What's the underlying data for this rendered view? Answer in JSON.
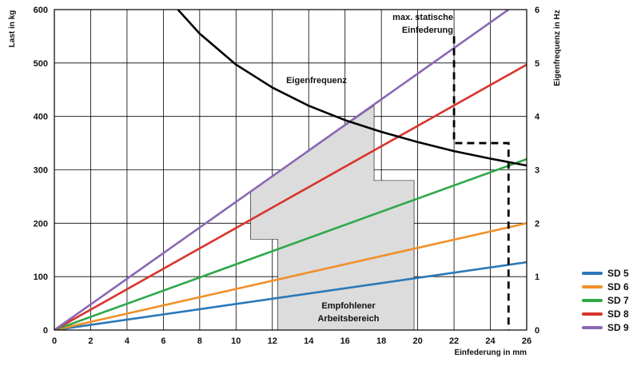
{
  "chart_data": {
    "type": "line",
    "xlabel": "Einfederung in mm",
    "ylabel_left": "Last in kg",
    "ylabel_right": "Eigenfrequenz in Hz",
    "xlim": [
      0,
      26
    ],
    "ylim_left": [
      0,
      600
    ],
    "ylim_right": [
      0,
      6
    ],
    "x_ticks": [
      0,
      2,
      4,
      6,
      8,
      10,
      12,
      14,
      16,
      18,
      20,
      22,
      24,
      26
    ],
    "y_ticks_left": [
      0,
      100,
      200,
      300,
      400,
      500,
      600
    ],
    "y_ticks_right": [
      0,
      1,
      2,
      3,
      4,
      5,
      6
    ],
    "grid": true,
    "series": [
      {
        "name": "SD 5",
        "color": "#2a78b8",
        "x": [
          0,
          26
        ],
        "y": [
          0,
          127
        ]
      },
      {
        "name": "SD 6",
        "color": "#f0902a",
        "x": [
          0,
          26
        ],
        "y": [
          0,
          200
        ]
      },
      {
        "name": "SD 7",
        "color": "#2fa84a",
        "x": [
          0,
          26
        ],
        "y": [
          0,
          320
        ]
      },
      {
        "name": "SD 8",
        "color": "#d8342c",
        "x": [
          0,
          26
        ],
        "y": [
          0,
          497
        ]
      },
      {
        "name": "SD 9",
        "color": "#8a68b4",
        "x": [
          0,
          25
        ],
        "y": [
          0,
          600
        ]
      }
    ],
    "eigenfrequency_curve": {
      "label": "Eigenfrequenz",
      "color": "#000000",
      "x": [
        6.8,
        8,
        10,
        12,
        14,
        16,
        18,
        20,
        22,
        24,
        26
      ],
      "hz": [
        6.0,
        5.55,
        4.97,
        4.54,
        4.2,
        3.93,
        3.71,
        3.52,
        3.35,
        3.21,
        3.08
      ]
    },
    "recommended_range": {
      "label_line1": "Empfohlener",
      "label_line2": "Arbeitsbereich",
      "fill": "#dcdcdc",
      "polygon": [
        [
          10.8,
          260
        ],
        [
          10.8,
          170
        ],
        [
          12.3,
          170
        ],
        [
          12.3,
          0
        ],
        [
          19.8,
          0
        ],
        [
          19.8,
          280
        ],
        [
          17.6,
          280
        ],
        [
          17.6,
          420
        ]
      ]
    },
    "max_static_deflection": {
      "label_line1": "max. statische",
      "label_line2": "Einfederung",
      "path": [
        [
          22.0,
          550
        ],
        [
          22.0,
          350
        ],
        [
          25.0,
          350
        ],
        [
          25.0,
          0
        ]
      ]
    },
    "legend_position": "bottom-right"
  }
}
